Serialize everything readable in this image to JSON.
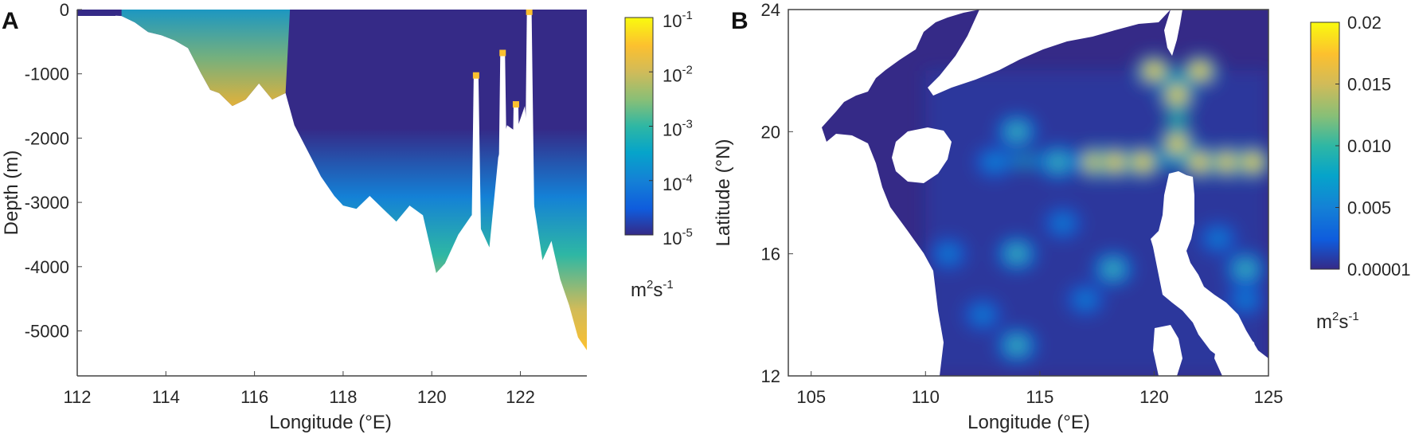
{
  "figure": {
    "panels": [
      "A",
      "B"
    ]
  },
  "chart_data": [
    {
      "panel": "A",
      "type": "heatmap",
      "title": "",
      "xlabel": "Longitude (°E)",
      "ylabel": "Depth (m)",
      "xlim": [
        112,
        123.5
      ],
      "ylim": [
        -5700,
        0
      ],
      "xticks": [
        112,
        114,
        116,
        118,
        120,
        122
      ],
      "yticks": [
        0,
        -1000,
        -2000,
        -3000,
        -4000,
        -5000
      ],
      "ytick_labels": [
        "0",
        "-1000",
        "-2000",
        "-3000",
        "-4000",
        "-5000"
      ],
      "grid": false,
      "colorbar": {
        "scale": "log",
        "ticks": [
          "10^-1",
          "10^-2",
          "10^-3",
          "10^-4",
          "10^-5"
        ],
        "tick_base": "10",
        "tick_exponents": [
          "-1",
          "-2",
          "-3",
          "-4",
          "-5"
        ],
        "range": [
          1e-05,
          0.1
        ],
        "units_base": "m",
        "units_exp1": "2",
        "units_mid": "s",
        "units_exp2": "-1",
        "colormap": "parula"
      },
      "bathymetry_profile": {
        "description": "Depth of seafloor along section; values estimated from figure",
        "lon": [
          112.0,
          112.5,
          113.0,
          113.3,
          113.6,
          113.9,
          114.2,
          114.5,
          114.8,
          115.0,
          115.2,
          115.5,
          115.8,
          116.1,
          116.4,
          116.7,
          116.9,
          117.2,
          117.5,
          117.8,
          118.0,
          118.3,
          118.6,
          118.9,
          119.2,
          119.5,
          119.8,
          120.1,
          120.3,
          120.6,
          120.9,
          121.1,
          121.3,
          121.5,
          121.7,
          121.9,
          122.1,
          122.3,
          122.5,
          122.7,
          122.9,
          123.1,
          123.3,
          123.5
        ],
        "depth": [
          -60,
          -80,
          -100,
          -200,
          -350,
          -400,
          -480,
          -600,
          -1000,
          -1250,
          -1300,
          -1500,
          -1400,
          -1150,
          -1400,
          -1300,
          -1800,
          -2200,
          -2600,
          -2900,
          -3050,
          -3100,
          -2900,
          -3100,
          -3300,
          -3050,
          -3200,
          -4100,
          -3950,
          -3500,
          -3200,
          -3400,
          -3700,
          -2300,
          -1800,
          -1900,
          -1500,
          -3000,
          -3900,
          -3600,
          -4200,
          -4600,
          -5100,
          -5300
        ]
      },
      "peaks": [
        {
          "lon": 121.0,
          "depth": -1050
        },
        {
          "lon": 121.6,
          "depth": -700
        },
        {
          "lon": 121.9,
          "depth": -1500
        },
        {
          "lon": 122.2,
          "depth": -60
        }
      ]
    },
    {
      "panel": "B",
      "type": "heatmap",
      "title": "",
      "xlabel": "Longitude (°E)",
      "ylabel": "Latitude (°N)",
      "xlim": [
        104,
        125
      ],
      "ylim": [
        12,
        24
      ],
      "xticks": [
        105,
        110,
        115,
        120,
        125
      ],
      "yticks": [
        12,
        16,
        20,
        24
      ],
      "grid": false,
      "colorbar": {
        "scale": "linear",
        "ticks": [
          "0.02",
          "0.015",
          "0.010",
          "0.005",
          "0.00001"
        ],
        "range": [
          1e-05,
          0.02
        ],
        "units_base": "m",
        "units_exp1": "2",
        "units_mid": "s",
        "units_exp2": "-1",
        "colormap": "parula"
      },
      "hotspots": [
        {
          "lon": 121.0,
          "lat": 21.2,
          "value": 0.017
        },
        {
          "lon": 121.0,
          "lat": 19.6,
          "value": 0.02
        },
        {
          "lon": 120.0,
          "lat": 22.0,
          "value": 0.017
        },
        {
          "lon": 122.0,
          "lat": 22.0,
          "value": 0.017
        },
        {
          "lon": 117.4,
          "lat": 19.0,
          "value": 0.015
        },
        {
          "lon": 118.3,
          "lat": 19.0,
          "value": 0.016
        },
        {
          "lon": 119.5,
          "lat": 19.0,
          "value": 0.015
        },
        {
          "lon": 122.0,
          "lat": 19.0,
          "value": 0.014
        },
        {
          "lon": 123.2,
          "lat": 19.0,
          "value": 0.016
        },
        {
          "lon": 124.3,
          "lat": 19.0,
          "value": 0.015
        },
        {
          "lon": 115.8,
          "lat": 19.0,
          "value": 0.01
        },
        {
          "lon": 114.0,
          "lat": 20.0,
          "value": 0.011
        },
        {
          "lon": 113.0,
          "lat": 19.0,
          "value": 0.008
        },
        {
          "lon": 114.0,
          "lat": 16.0,
          "value": 0.011
        },
        {
          "lon": 111.0,
          "lat": 16.0,
          "value": 0.009
        },
        {
          "lon": 114.0,
          "lat": 13.0,
          "value": 0.01
        },
        {
          "lon": 118.2,
          "lat": 15.5,
          "value": 0.011
        },
        {
          "lon": 117.0,
          "lat": 14.5,
          "value": 0.009
        },
        {
          "lon": 124.0,
          "lat": 15.5,
          "value": 0.011
        },
        {
          "lon": 112.5,
          "lat": 14.0,
          "value": 0.008
        },
        {
          "lon": 116.0,
          "lat": 17.0,
          "value": 0.008
        },
        {
          "lon": 124.0,
          "lat": 14.5,
          "value": 0.009
        },
        {
          "lon": 122.8,
          "lat": 16.5,
          "value": 0.009
        }
      ],
      "data_box": {
        "lon": [
          110,
          125
        ],
        "lat": [
          12,
          22
        ]
      }
    }
  ]
}
